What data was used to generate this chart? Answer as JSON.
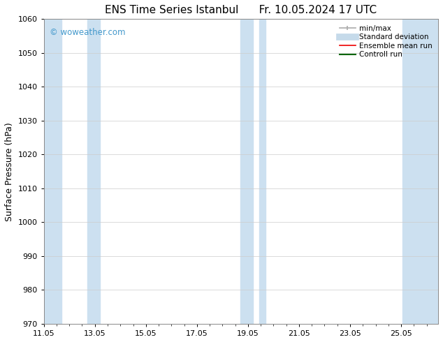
{
  "title": "ENS Time Series Istanbul",
  "title2": "Fr. 10.05.2024 17 UTC",
  "ylabel": "Surface Pressure (hPa)",
  "ylim": [
    970,
    1060
  ],
  "yticks": [
    970,
    980,
    990,
    1000,
    1010,
    1020,
    1030,
    1040,
    1050,
    1060
  ],
  "x_start": 11.05,
  "x_end": 26.5,
  "xticks": [
    11.05,
    13.05,
    15.05,
    17.05,
    19.05,
    21.05,
    23.05,
    25.05
  ],
  "xlim": [
    11.05,
    26.5
  ],
  "watermark": "© woweather.com",
  "watermark_color": "#4499cc",
  "bg_color": "#ffffff",
  "plot_bg_color": "#ffffff",
  "shaded_bands": [
    {
      "x_start": 11.05,
      "x_end": 11.75,
      "color": "#cce0f0"
    },
    {
      "x_start": 12.75,
      "x_end": 13.25,
      "color": "#cce0f0"
    },
    {
      "x_start": 18.75,
      "x_end": 19.25,
      "color": "#cce0f0"
    },
    {
      "x_start": 19.5,
      "x_end": 19.75,
      "color": "#cce0f0"
    },
    {
      "x_start": 25.1,
      "x_end": 26.5,
      "color": "#cce0f0"
    }
  ],
  "legend_items": [
    {
      "label": "min/max",
      "color": "#aaaaaa",
      "lw": 1.2
    },
    {
      "label": "Standard deviation",
      "color": "#c5daea",
      "lw": 7
    },
    {
      "label": "Ensemble mean run",
      "color": "#ee0000",
      "lw": 1.2
    },
    {
      "label": "Controll run",
      "color": "#006600",
      "lw": 1.5
    }
  ],
  "title_fontsize": 11,
  "axis_label_fontsize": 9,
  "tick_fontsize": 8,
  "legend_fontsize": 7.5
}
